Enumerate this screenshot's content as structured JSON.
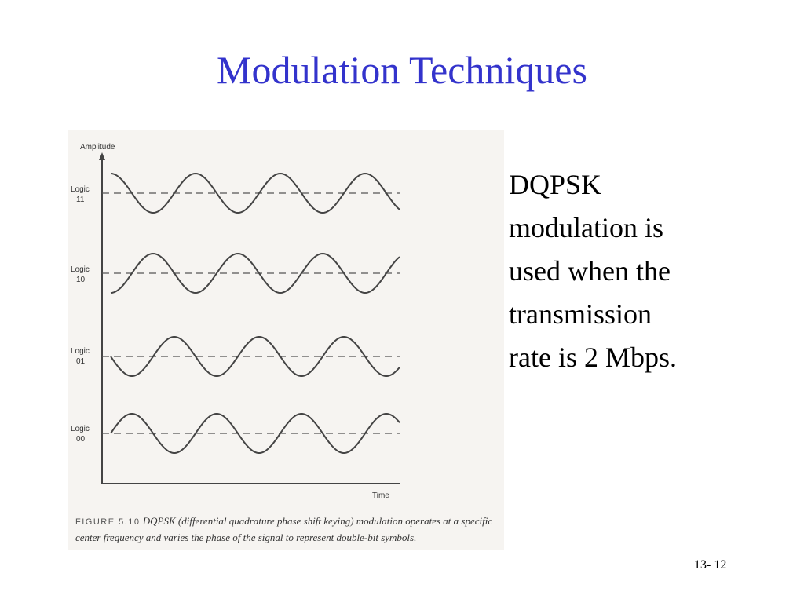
{
  "title": "Modulation Techniques",
  "figure": {
    "axis": {
      "y_label": "Amplitude",
      "x_label": "Time"
    },
    "rows": [
      {
        "logic_label": "Logic",
        "bits": "11"
      },
      {
        "logic_label": "Logic",
        "bits": "10"
      },
      {
        "logic_label": "Logic",
        "bits": "01"
      },
      {
        "logic_label": "Logic",
        "bits": "00"
      }
    ],
    "caption_label": "FIGURE 5.10",
    "caption_text": "DQPSK (differential quadrature phase shift keying) modulation operates at a specific center frequency and varies the phase of the signal to represent double-bit symbols."
  },
  "body_lines": [
    "DQPSK",
    "modulation is",
    "used when the",
    "transmission",
    "rate is 2 Mbps."
  ],
  "slide_number": "13- 12",
  "colors": {
    "title": "#3333cc",
    "wave": "#444444"
  }
}
